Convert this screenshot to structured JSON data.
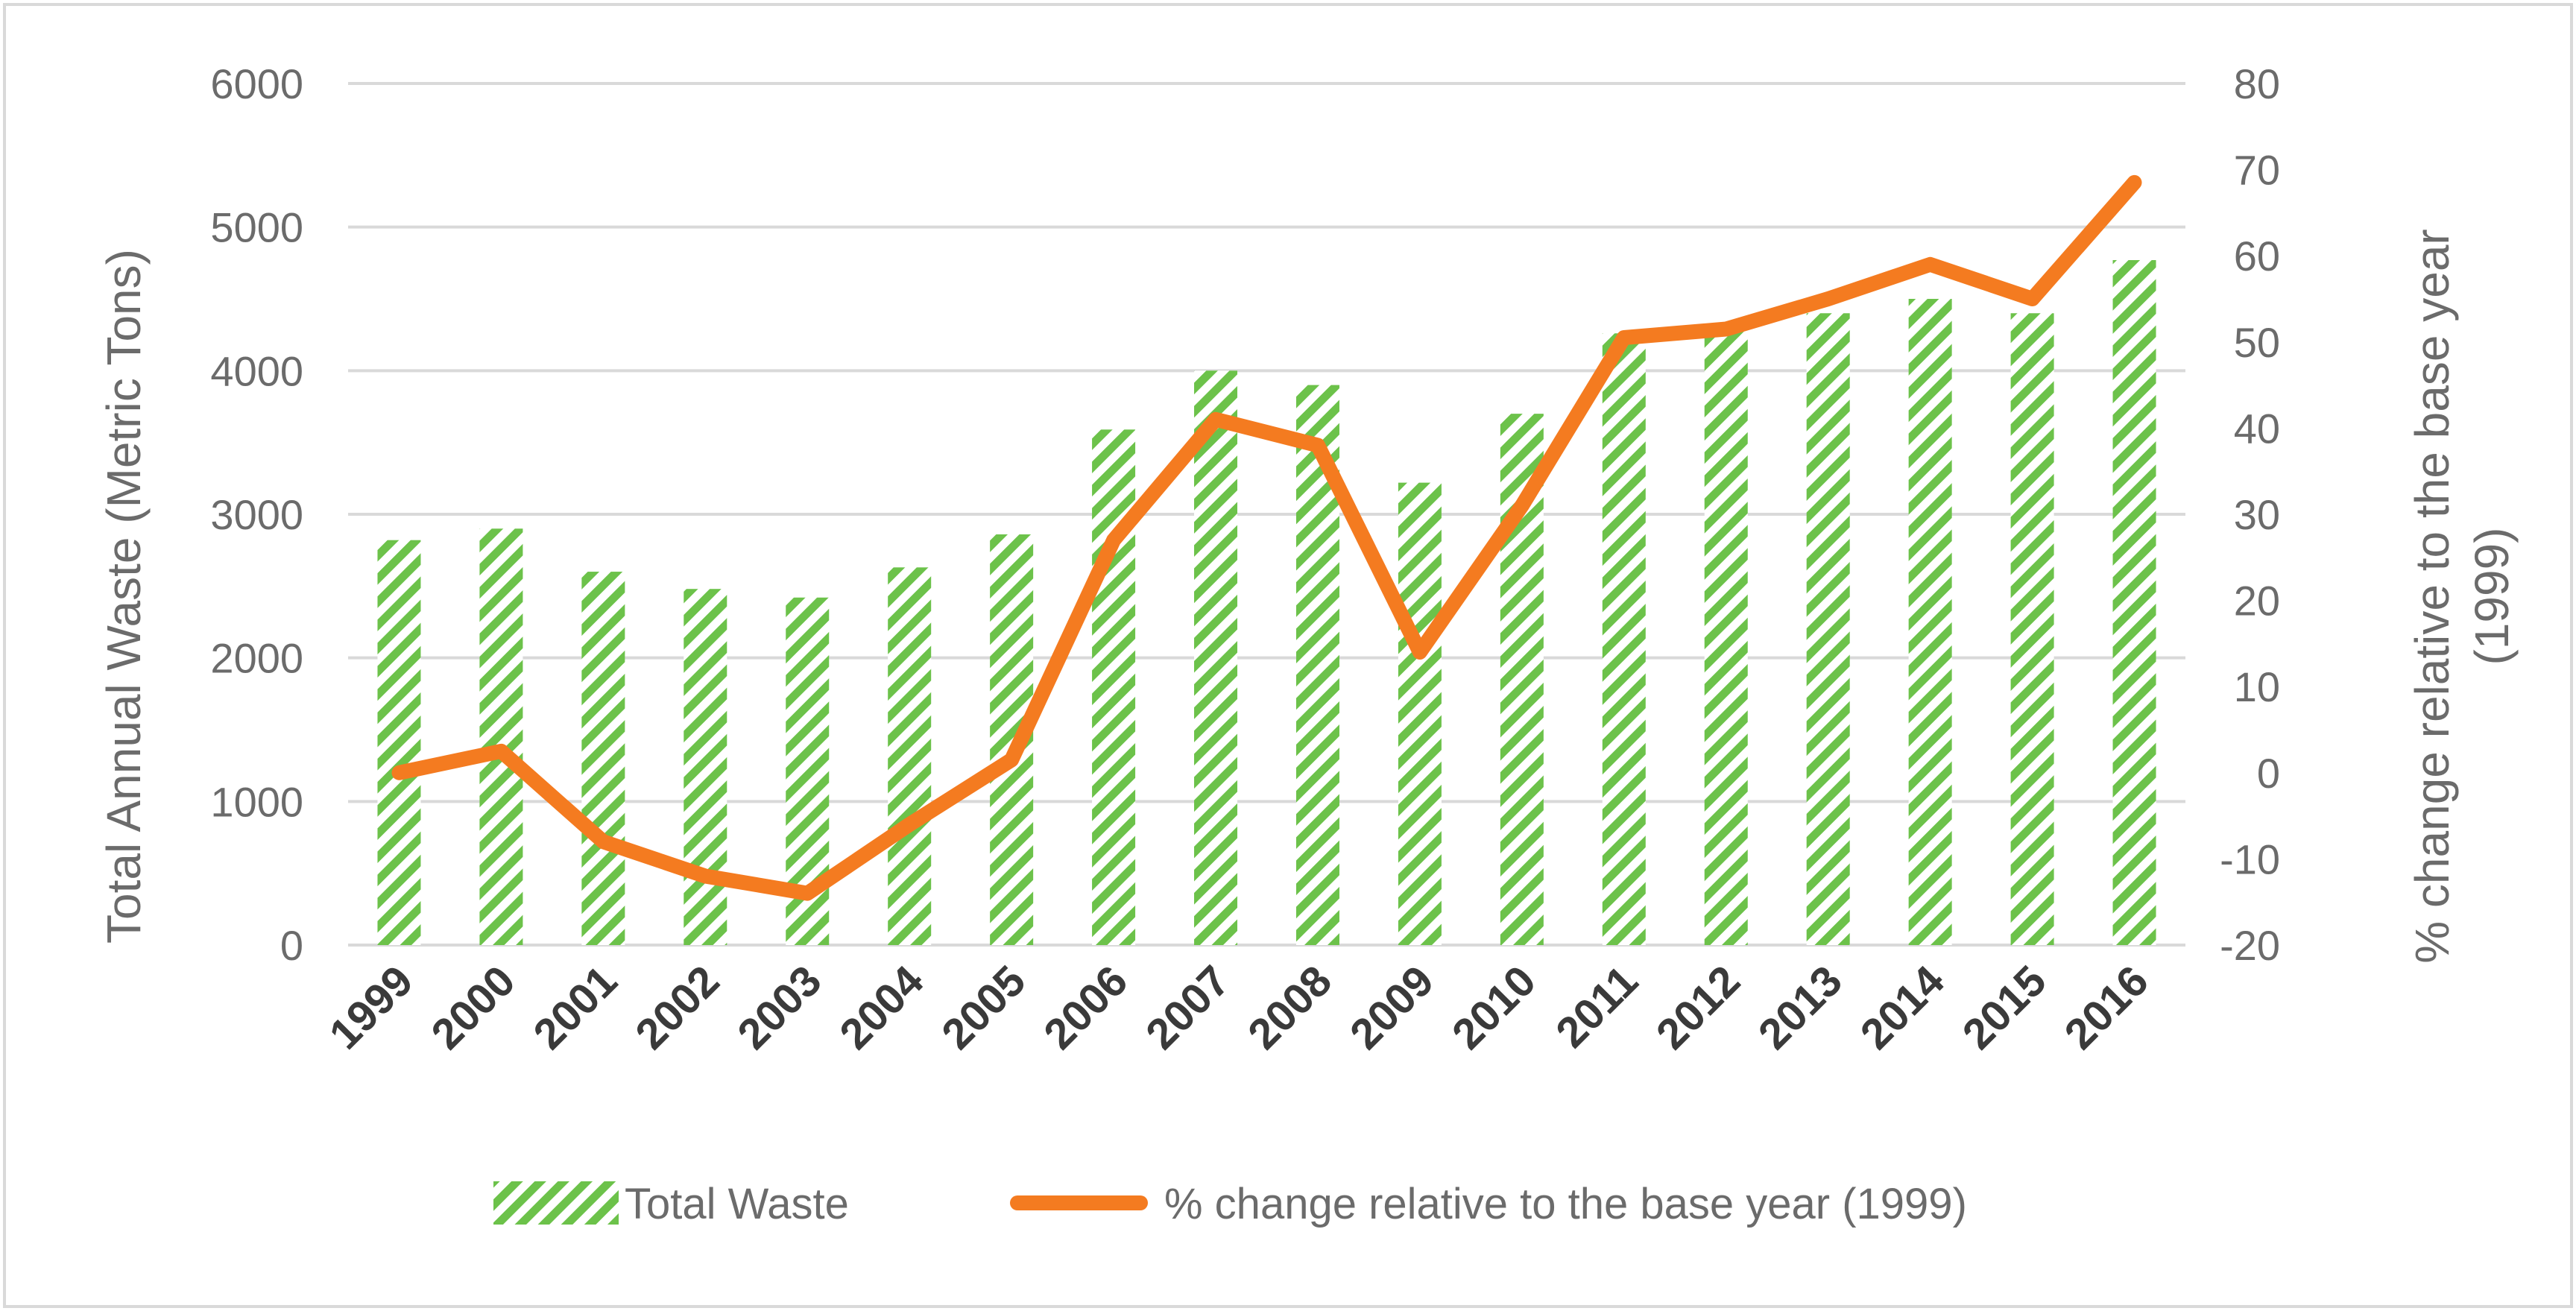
{
  "colors": {
    "bar": "#6cc24a",
    "line": "#f47b20",
    "grid": "#d9d9d9",
    "text": "#6b6b6b",
    "category": "#3a3a3a",
    "border": "#d9d9d9"
  },
  "chart_data": {
    "type": "bar",
    "title": "",
    "categories": [
      "1999",
      "2000",
      "2001",
      "2002",
      "2003",
      "2004",
      "2005",
      "2006",
      "2007",
      "2008",
      "2009",
      "2010",
      "2011",
      "2012",
      "2013",
      "2014",
      "2015",
      "2016"
    ],
    "series": [
      {
        "name": "Total Waste",
        "type": "bar",
        "axis": "left",
        "pattern": "diagonal-stripes",
        "values": [
          2820,
          2900,
          2600,
          2480,
          2420,
          2630,
          2860,
          3590,
          4000,
          3900,
          3220,
          3700,
          4260,
          4300,
          4400,
          4500,
          4400,
          4770
        ]
      },
      {
        "name": "% change relative to the base year (1999)",
        "type": "line",
        "axis": "right",
        "values": [
          0,
          2.5,
          -8,
          -12,
          -14,
          -6,
          1.5,
          27,
          41,
          38,
          14,
          31,
          50.5,
          51.5,
          55,
          59,
          55,
          68.5
        ]
      }
    ],
    "ylabel": "Total Annual Waste (Metric Tons)",
    "y2label": "% change relative to the base year (1999)",
    "ylim": [
      0,
      6000
    ],
    "y2lim": [
      -20,
      80
    ],
    "yticks": [
      "0",
      "1000",
      "2000",
      "3000",
      "4000",
      "5000",
      "6000"
    ],
    "y2ticks": [
      "-20",
      "-10",
      "0",
      "10",
      "20",
      "30",
      "40",
      "50",
      "60",
      "70",
      "80"
    ],
    "grid": true,
    "legend": "bottom",
    "legend_items": [
      "Total Waste",
      "% change relative to the base year (1999)"
    ]
  }
}
